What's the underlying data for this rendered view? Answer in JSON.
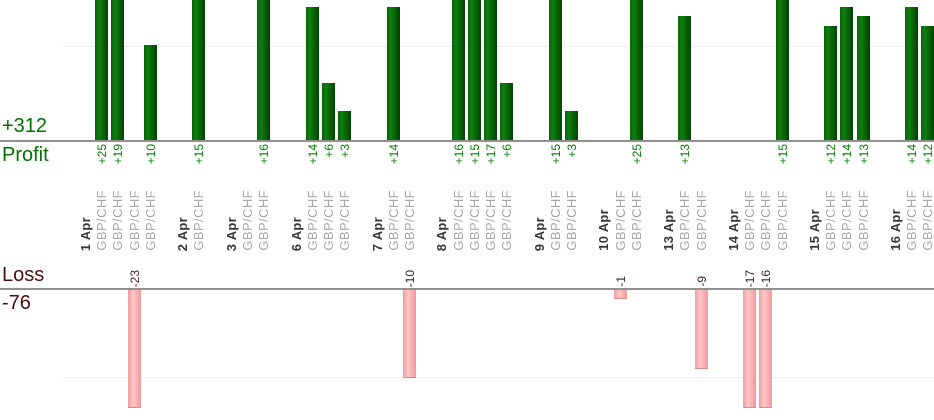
{
  "chart_data": {
    "type": "bar",
    "title": "",
    "symbol": "GBP/CHF",
    "profit": {
      "label": "Profit",
      "total": "+312",
      "text_color": "#007000"
    },
    "loss": {
      "label": "Loss",
      "total": "-76",
      "text_color": "#4a0e0e"
    },
    "bar_colors": {
      "profit": "#0b6e0b",
      "loss": "#f7aaaa"
    },
    "gridlines": {
      "profit_value": 10,
      "loss_value": -10
    },
    "axis_note": "profit bars clipped above +15 at top edge, loss bars clipped below about -13 at plot bottom",
    "groups": [
      {
        "date": "1 Apr",
        "trades": [
          25,
          19,
          -23,
          10
        ]
      },
      {
        "date": "2 Apr",
        "trades": [
          15
        ]
      },
      {
        "date": "3 Apr",
        "trades": [
          0,
          16
        ]
      },
      {
        "date": "6 Apr",
        "trades": [
          14,
          6,
          3
        ]
      },
      {
        "date": "7 Apr",
        "trades": [
          14,
          -10
        ]
      },
      {
        "date": "8 Apr",
        "trades": [
          16,
          15,
          17,
          6
        ]
      },
      {
        "date": "9 Apr",
        "trades": [
          15,
          3
        ]
      },
      {
        "date": "10 Apr",
        "trades": [
          -1,
          25
        ]
      },
      {
        "date": "13 Apr",
        "trades": [
          13,
          -9
        ]
      },
      {
        "date": "14 Apr",
        "trades": [
          -17,
          -16,
          15
        ]
      },
      {
        "date": "15 Apr",
        "trades": [
          12,
          14,
          13
        ]
      },
      {
        "date": "16 Apr",
        "trades": [
          14,
          12
        ]
      }
    ]
  }
}
